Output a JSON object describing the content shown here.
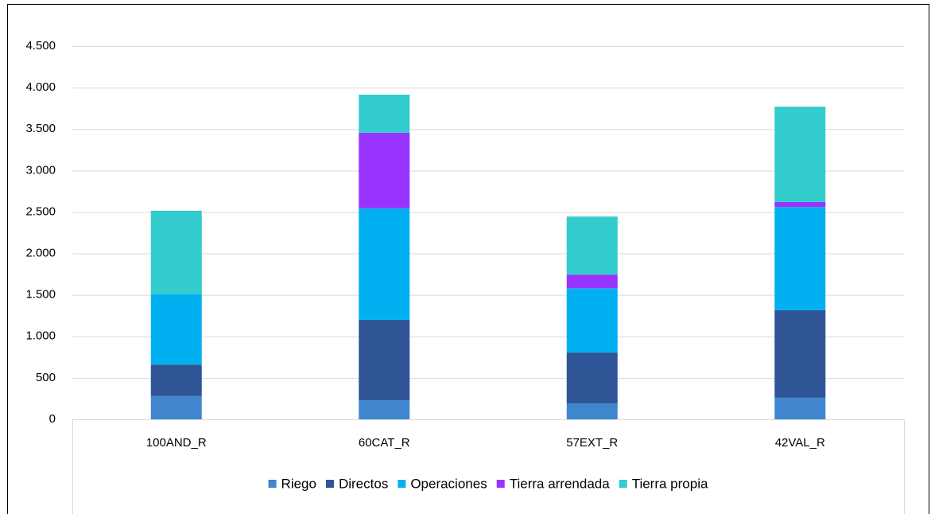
{
  "chart_data": {
    "type": "stacked_bar",
    "categories": [
      "100AND_R",
      "60CAT_R",
      "57EXT_R",
      "42VAL_R"
    ],
    "series": [
      {
        "name": "Riego",
        "color": "#3f86cf",
        "values": [
          280,
          230,
          190,
          260
        ]
      },
      {
        "name": "Directos",
        "color": "#2f5597",
        "values": [
          380,
          970,
          615,
          1055
        ]
      },
      {
        "name": "Operaciones",
        "color": "#00b0f0",
        "values": [
          850,
          1345,
          775,
          1245
        ]
      },
      {
        "name": "Tierra arrendada",
        "color": "#9933ff",
        "values": [
          0,
          910,
          165,
          60
        ]
      },
      {
        "name": "Tierra propia",
        "color": "#33cccc",
        "values": [
          1005,
          460,
          700,
          1150
        ]
      }
    ],
    "ylim": [
      0,
      4500
    ],
    "yticks": [
      0,
      500,
      {
        "value": 1000,
        "label": "1.000"
      },
      {
        "value": 1500,
        "label": "1.500"
      },
      {
        "value": 2000,
        "label": "2.000"
      },
      {
        "value": 2500,
        "label": "2.500"
      },
      {
        "value": 3000,
        "label": "3.000"
      },
      {
        "value": 3500,
        "label": "3.500"
      },
      {
        "value": 4000,
        "label": "4.000"
      },
      {
        "value": 4500,
        "label": "4.500"
      }
    ],
    "grid": true,
    "legend": "bottom"
  }
}
